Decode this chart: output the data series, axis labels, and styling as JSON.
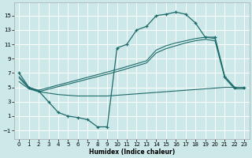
{
  "xlabel": "Humidex (Indice chaleur)",
  "bg_color": "#cce8e8",
  "line_color": "#1e6b6b",
  "grid_color": "#ffffff",
  "xlim": [
    -0.5,
    23.5
  ],
  "ylim": [
    -2.2,
    16.8
  ],
  "yticks": [
    -1,
    1,
    3,
    5,
    7,
    9,
    11,
    13,
    15
  ],
  "xticks": [
    0,
    1,
    2,
    3,
    4,
    5,
    6,
    7,
    8,
    9,
    10,
    11,
    12,
    13,
    14,
    15,
    16,
    17,
    18,
    19,
    20,
    21,
    22,
    23
  ],
  "curve1_x": [
    0,
    1,
    2,
    3,
    4,
    5,
    6,
    7,
    8,
    9,
    10,
    11,
    12,
    13,
    14,
    15,
    16,
    17,
    18,
    19,
    20,
    21,
    22,
    23
  ],
  "curve1_y": [
    7.0,
    5.0,
    4.5,
    3.0,
    1.5,
    1.0,
    0.8,
    0.5,
    -0.5,
    -0.5,
    10.5,
    11.0,
    13.0,
    13.5,
    15.0,
    15.2,
    15.5,
    15.2,
    14.0,
    12.0,
    12.0,
    6.5,
    5.0,
    5.0
  ],
  "curve2_x": [
    0,
    1,
    2,
    10,
    11,
    12,
    13,
    14,
    15,
    16,
    17,
    18,
    19,
    20,
    21,
    22,
    23
  ],
  "curve2_y": [
    6.5,
    5.0,
    4.6,
    7.5,
    7.9,
    8.3,
    8.7,
    10.2,
    10.8,
    11.2,
    11.5,
    11.8,
    12.0,
    11.8,
    6.5,
    5.0,
    5.0
  ],
  "curve3_x": [
    0,
    1,
    2,
    10,
    11,
    12,
    13,
    14,
    15,
    16,
    17,
    18,
    19,
    20,
    21,
    22,
    23
  ],
  "curve3_y": [
    6.3,
    4.9,
    4.4,
    7.2,
    7.6,
    8.0,
    8.4,
    9.8,
    10.4,
    10.8,
    11.2,
    11.5,
    11.7,
    11.5,
    6.3,
    4.8,
    4.8
  ],
  "curve4_x": [
    0,
    1,
    2,
    3,
    4,
    5,
    6,
    7,
    8,
    9,
    10,
    11,
    12,
    13,
    14,
    15,
    16,
    17,
    18,
    19,
    20,
    21,
    22,
    23
  ],
  "curve4_y": [
    5.8,
    4.8,
    4.4,
    4.2,
    4.0,
    3.9,
    3.8,
    3.8,
    3.8,
    3.8,
    3.9,
    4.0,
    4.1,
    4.2,
    4.3,
    4.4,
    4.5,
    4.6,
    4.7,
    4.8,
    4.9,
    5.0,
    5.0,
    5.0
  ]
}
